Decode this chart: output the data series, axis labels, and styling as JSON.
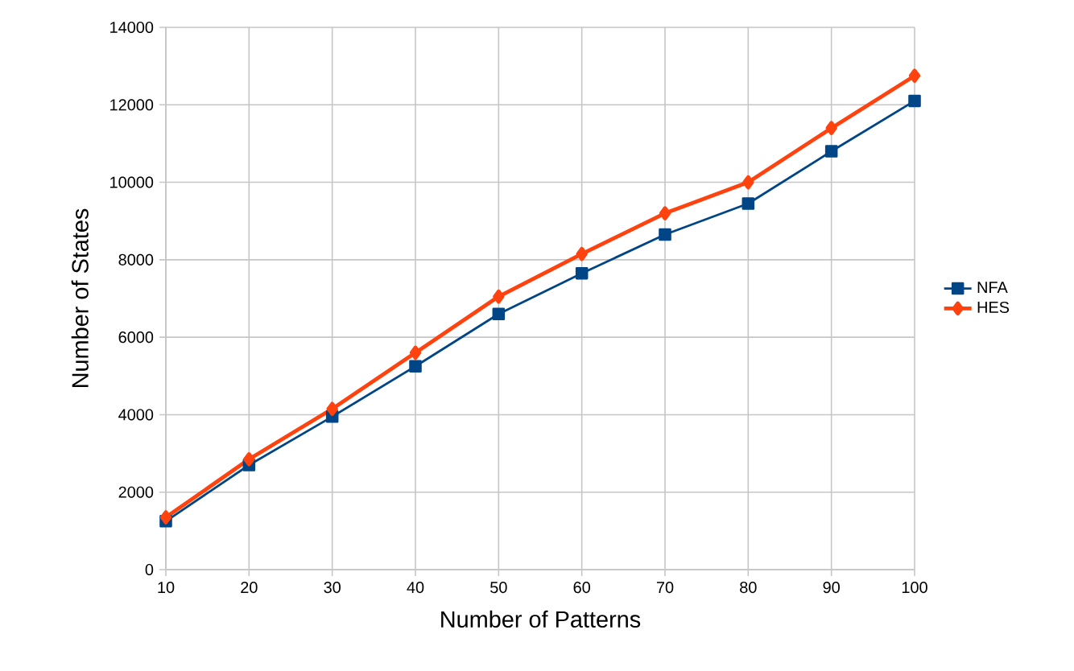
{
  "chart_data": {
    "type": "line",
    "xlabel": "Number of Patterns",
    "ylabel": "Number of States",
    "x": [
      10,
      20,
      30,
      40,
      50,
      60,
      70,
      80,
      90,
      100
    ],
    "series": [
      {
        "name": "NFA",
        "color": "#004586",
        "marker": "square",
        "values": [
          1250,
          2700,
          3950,
          5250,
          6600,
          7650,
          8650,
          9450,
          10800,
          12100
        ]
      },
      {
        "name": "HES",
        "color": "#ff420e",
        "marker": "diamond",
        "values": [
          1350,
          2850,
          4150,
          5600,
          7050,
          8150,
          9200,
          10000,
          11400,
          12750
        ]
      }
    ],
    "xlim": [
      10,
      100
    ],
    "xticks": [
      10,
      20,
      30,
      40,
      50,
      60,
      70,
      80,
      90,
      100
    ],
    "ylim": [
      0,
      14000
    ],
    "yticks": [
      0,
      2000,
      4000,
      6000,
      8000,
      10000,
      12000,
      14000
    ],
    "grid": true,
    "legend": "right",
    "line_style": "solid"
  }
}
